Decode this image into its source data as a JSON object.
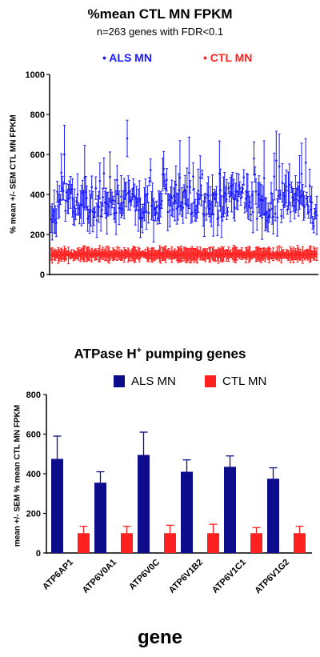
{
  "chart_data": [
    {
      "type": "scatter",
      "title": "%mean CTL MN FPKM",
      "subtitle": "n=263 genes with FDR<0.1",
      "ylabel": "% mean +/- SEM CTL MN FPKM",
      "xlabel": "",
      "ylim": [
        0,
        1000
      ],
      "yticks": [
        0,
        200,
        400,
        600,
        800,
        1000
      ],
      "n_genes": 263,
      "legend_position": "top",
      "series": [
        {
          "name": "ALS MN",
          "color": "#1a1aff",
          "values_summary": "263 genes, means roughly 230-740 (most 280-450), SEM roughly 20-180",
          "peak_values": [
            740,
            640,
            600,
            560,
            550,
            520
          ]
        },
        {
          "name": "CTL MN",
          "color": "#ff2020",
          "values_summary": "263 genes, means ~100 (normalized), SEM ~10-60"
        }
      ],
      "grid": false
    },
    {
      "type": "bar",
      "title": "ATPase H",
      "title_sup": "+",
      "title_suffix": " pumping genes",
      "ylabel": "mean +/- SEM % mean CTL MN FPKM",
      "xlabel": "gene",
      "ylim": [
        0,
        800
      ],
      "yticks": [
        0,
        200,
        400,
        600,
        800
      ],
      "categories": [
        "ATP6AP1",
        "ATP6V0A1",
        "ATP6V0C",
        "ATP6V1B2",
        "ATP6V1C1",
        "ATP6V1G2"
      ],
      "legend_position": "top",
      "series": [
        {
          "name": "ALS MN",
          "color": "#0d0d8c",
          "values": [
            475,
            355,
            495,
            410,
            435,
            375
          ],
          "errors": [
            115,
            55,
            115,
            60,
            55,
            55
          ]
        },
        {
          "name": "CTL MN",
          "color": "#ff2020",
          "values": [
            100,
            100,
            100,
            100,
            100,
            100
          ],
          "errors": [
            35,
            35,
            40,
            45,
            28,
            35
          ]
        }
      ],
      "grid": false
    }
  ]
}
